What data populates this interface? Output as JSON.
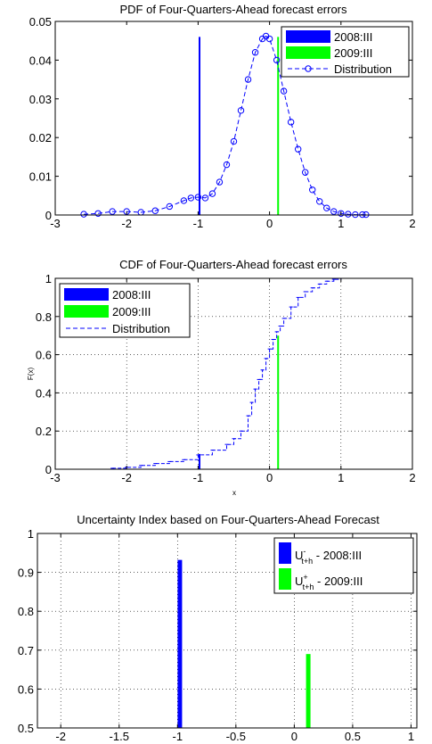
{
  "chart_data": [
    {
      "type": "line",
      "title": "PDF of Four-Quarters-Ahead forecast errors",
      "xlabel": "",
      "ylabel": "",
      "xlim": [
        -3,
        2
      ],
      "ylim": [
        0,
        0.05
      ],
      "xticks": [
        -3,
        -2,
        -1,
        0,
        1,
        2
      ],
      "xtick_labels": [
        "-3",
        "-2",
        "-1",
        "0",
        "1",
        "2"
      ],
      "yticks": [
        0,
        0.01,
        0.02,
        0.03,
        0.04,
        0.05
      ],
      "ytick_labels": [
        "0",
        "0.01",
        "0.02",
        "0.03",
        "0.04",
        "0.05"
      ],
      "grid": false,
      "legend_position": "top-right",
      "series": [
        {
          "name": "2008:III",
          "kind": "vline",
          "x": -0.98,
          "y_top": 0.046,
          "color": "#0000ff"
        },
        {
          "name": "2009:III",
          "kind": "vline",
          "x": 0.12,
          "y_top": 0.046,
          "color": "#00ff00"
        },
        {
          "name": "Distribution",
          "kind": "line-marker",
          "color": "#0000ff",
          "x": [
            -2.6,
            -2.4,
            -2.2,
            -2.0,
            -1.8,
            -1.6,
            -1.4,
            -1.2,
            -1.1,
            -1.0,
            -0.9,
            -0.8,
            -0.7,
            -0.6,
            -0.5,
            -0.4,
            -0.3,
            -0.2,
            -0.1,
            -0.05,
            0.0,
            0.1,
            0.2,
            0.3,
            0.4,
            0.5,
            0.6,
            0.7,
            0.8,
            0.9,
            1.0,
            1.1,
            1.2,
            1.3,
            1.35
          ],
          "values": [
            0.0002,
            0.0004,
            0.0009,
            0.0009,
            0.0007,
            0.0011,
            0.0022,
            0.0037,
            0.0044,
            0.0046,
            0.0044,
            0.0055,
            0.0085,
            0.013,
            0.019,
            0.027,
            0.035,
            0.042,
            0.0455,
            0.0462,
            0.0455,
            0.04,
            0.032,
            0.024,
            0.017,
            0.011,
            0.0065,
            0.0035,
            0.0018,
            0.0009,
            0.0004,
            0.0002,
            0.0001,
            0.0001,
            0.0001
          ]
        }
      ]
    },
    {
      "type": "line",
      "title": "CDF of Four-Quarters-Ahead forecast errors",
      "xlabel": "x",
      "ylabel": "F(x)",
      "xlim": [
        -3,
        2
      ],
      "ylim": [
        0,
        1
      ],
      "xticks": [
        -3,
        -2,
        -1,
        0,
        1,
        2
      ],
      "xtick_labels": [
        "-3",
        "-2",
        "-1",
        "0",
        "1",
        "2"
      ],
      "yticks": [
        0,
        0.2,
        0.4,
        0.6,
        0.8,
        1
      ],
      "ytick_labels": [
        "0",
        "0.2",
        "0.4",
        "0.6",
        "0.8",
        "1"
      ],
      "grid": true,
      "legend_position": "top-left",
      "series": [
        {
          "name": "2008:III",
          "kind": "vline",
          "x": -0.98,
          "y_top": 0.08,
          "color": "#0000ff"
        },
        {
          "name": "2009:III",
          "kind": "vline",
          "x": 0.12,
          "y_top": 0.7,
          "color": "#00ff00"
        },
        {
          "name": "Distribution",
          "kind": "step",
          "color": "#0000ff",
          "x": [
            -2.2,
            -2.0,
            -1.8,
            -1.6,
            -1.4,
            -1.2,
            -1.0,
            -0.8,
            -0.6,
            -0.5,
            -0.4,
            -0.3,
            -0.25,
            -0.2,
            -0.15,
            -0.1,
            -0.05,
            0.0,
            0.05,
            0.1,
            0.15,
            0.2,
            0.3,
            0.4,
            0.5,
            0.6,
            0.7,
            0.8,
            0.9,
            1.0
          ],
          "values": [
            0.005,
            0.01,
            0.02,
            0.03,
            0.04,
            0.05,
            0.075,
            0.1,
            0.13,
            0.16,
            0.2,
            0.28,
            0.35,
            0.42,
            0.47,
            0.52,
            0.58,
            0.63,
            0.68,
            0.72,
            0.75,
            0.79,
            0.85,
            0.9,
            0.93,
            0.95,
            0.97,
            0.985,
            0.995,
            1.0
          ]
        }
      ]
    },
    {
      "type": "bar",
      "title": "Uncertainty Index based on Four-Quarters-Ahead Forecast",
      "xlabel": "",
      "ylabel": "",
      "xlim": [
        -2.2,
        1.05
      ],
      "ylim": [
        0.5,
        1
      ],
      "xticks": [
        -2,
        -1.5,
        -1,
        -0.5,
        0,
        0.5,
        1
      ],
      "xtick_labels": [
        "-2",
        "-1.5",
        "-1",
        "-0.5",
        "0",
        "0.5",
        "1"
      ],
      "yticks": [
        0.5,
        0.6,
        0.7,
        0.8,
        0.9,
        1
      ],
      "ytick_labels": [
        "0.5",
        "0.6",
        "0.7",
        "0.8",
        "0.9",
        "1"
      ],
      "grid": true,
      "legend_position": "top-right",
      "series": [
        {
          "name_main": "U",
          "name_sup": "-",
          "name_sub": "t+h",
          "name_suffix": " - 2008:III",
          "x": -0.98,
          "value": 0.932,
          "color": "#0000ff"
        },
        {
          "name_main": "U",
          "name_sup": "+",
          "name_sub": "t+h",
          "name_suffix": " - 2009:III",
          "x": 0.12,
          "value": 0.69,
          "color": "#00ff00"
        }
      ]
    }
  ]
}
